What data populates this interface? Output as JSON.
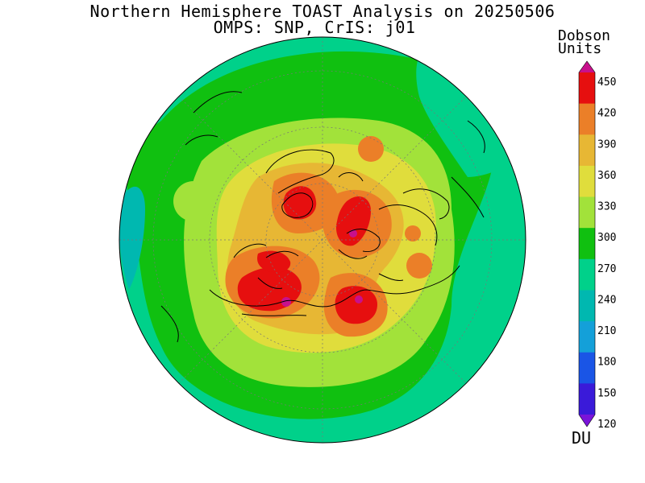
{
  "title": {
    "line1": "Northern Hemisphere TOAST Analysis on 20250506",
    "line2": "OMPS: SNP, CrIS: j01"
  },
  "colorbar": {
    "units_line1": "Dobson",
    "units_line2": "Units",
    "footer": "DU",
    "ticks": [
      "120",
      "150",
      "180",
      "210",
      "240",
      "270",
      "300",
      "330",
      "360",
      "390",
      "420",
      "450"
    ],
    "colors": [
      "#7a14d9",
      "#3a1ad9",
      "#1a55e6",
      "#14a0d9",
      "#00b8b0",
      "#00d18a",
      "#10c010",
      "#a2e23a",
      "#e0dd3c",
      "#e7b734",
      "#eb7f28",
      "#e60f0f",
      "#c8108c"
    ]
  },
  "map": {
    "projection": "north polar stereographic",
    "field_colors": {
      "ocean_green": "#00d18a",
      "green": "#10c010",
      "light_green": "#a2e23a",
      "yellow": "#e0dd3c",
      "gold": "#e7b734",
      "orange": "#eb7f28",
      "red": "#e60f0f",
      "magenta": "#c8108c",
      "teal": "#00b8b0"
    }
  }
}
